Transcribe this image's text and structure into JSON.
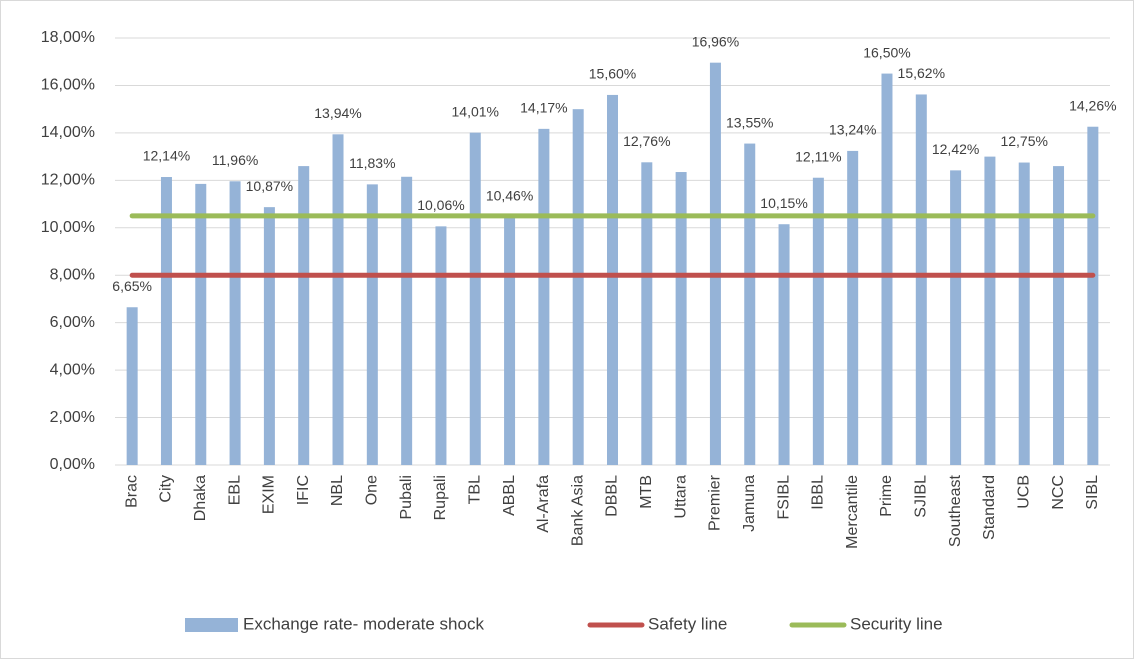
{
  "chart_data": {
    "type": "bar",
    "categories": [
      "Brac",
      "City",
      "Dhaka",
      "EBL",
      "EXIM",
      "IFIC",
      "NBL",
      "One",
      "Pubali",
      "Rupali",
      "TBL",
      "ABBL",
      "Al-Arafa",
      "Bank Asia",
      "DBBL",
      "MTB",
      "Uttara",
      "Premier",
      "Jamuna",
      "FSIBL",
      "IBBL",
      "Mercantile",
      "Prime",
      "SJIBL",
      "Southeast",
      "Standard",
      "UCB",
      "NCC",
      "SIBL"
    ],
    "series": [
      {
        "name": "Exchange rate- moderate shock",
        "type": "bar",
        "color": "#95b3d7",
        "values": [
          6.65,
          12.14,
          11.85,
          11.96,
          10.87,
          12.6,
          13.94,
          11.83,
          12.15,
          10.06,
          14.01,
          10.46,
          14.17,
          15.0,
          15.6,
          12.76,
          12.35,
          16.96,
          13.55,
          10.15,
          12.11,
          13.24,
          16.5,
          15.62,
          12.42,
          13.0,
          12.75,
          12.6,
          14.26
        ],
        "value_labels": [
          "6,65%",
          "12,14%",
          null,
          "11,96%",
          "10,87%",
          null,
          "13,94%",
          "11,83%",
          null,
          "10,06%",
          "14,01%",
          "10,46%",
          "14,17%",
          null,
          "15,60%",
          "12,76%",
          null,
          "16,96%",
          "13,55%",
          "10,15%",
          "12,11%",
          "13,24%",
          "16,50%",
          "15,62%",
          "12,42%",
          null,
          "12,75%",
          null,
          "14,26%"
        ]
      },
      {
        "name": "Safety line",
        "type": "line",
        "color": "#c0504d",
        "values": [
          8,
          8,
          8,
          8,
          8,
          8,
          8,
          8,
          8,
          8,
          8,
          8,
          8,
          8,
          8,
          8,
          8,
          8,
          8,
          8,
          8,
          8,
          8,
          8,
          8,
          8,
          8,
          8,
          8
        ]
      },
      {
        "name": "Security line",
        "type": "line",
        "color": "#9bbb59",
        "values": [
          10.5,
          10.5,
          10.5,
          10.5,
          10.5,
          10.5,
          10.5,
          10.5,
          10.5,
          10.5,
          10.5,
          10.5,
          10.5,
          10.5,
          10.5,
          10.5,
          10.5,
          10.5,
          10.5,
          10.5,
          10.5,
          10.5,
          10.5,
          10.5,
          10.5,
          10.5,
          10.5,
          10.5,
          10.5
        ]
      }
    ],
    "ylim": [
      0,
      18
    ],
    "yticks": [
      {
        "value": 0,
        "label": "0,00%"
      },
      {
        "value": 2,
        "label": "2,00%"
      },
      {
        "value": 4,
        "label": "4,00%"
      },
      {
        "value": 6,
        "label": "6,00%"
      },
      {
        "value": 8,
        "label": "8,00%"
      },
      {
        "value": 10,
        "label": "10,00%"
      },
      {
        "value": 12,
        "label": "12,00%"
      },
      {
        "value": 14,
        "label": "14,00%"
      },
      {
        "value": 16,
        "label": "16,00%"
      },
      {
        "value": 18,
        "label": "18,00%"
      }
    ],
    "grid": true,
    "legend": "bottom"
  }
}
